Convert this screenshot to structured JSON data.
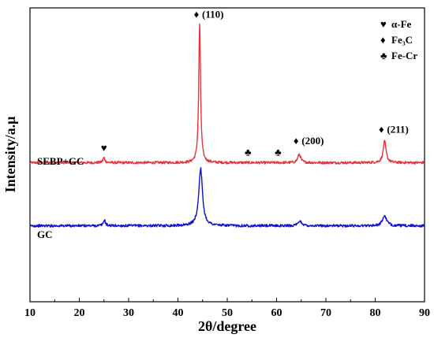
{
  "chart_data": {
    "type": "line",
    "xlabel": "2θ/degree",
    "ylabel": "Intensity/a.μ",
    "xlim": [
      10,
      90
    ],
    "xticks": [
      10,
      20,
      30,
      40,
      50,
      60,
      70,
      80,
      90
    ],
    "grid": false,
    "legend_placement": "top-right",
    "legend": [
      {
        "symbol": "♥",
        "label": "α-Fe"
      },
      {
        "symbol": "♦",
        "label": "Fe₃C"
      },
      {
        "symbol": "♣",
        "label": "Fe-Cr"
      }
    ],
    "series": [
      {
        "name": "SEBP+GC",
        "color": "#e8323c",
        "baseline": 0.77,
        "peaks": [
          {
            "x": 25.0,
            "h": 0.035,
            "w": 0.25
          },
          {
            "x": 44.4,
            "h": 0.97,
            "w": 0.22
          },
          {
            "x": 64.6,
            "h": 0.06,
            "w": 0.35
          },
          {
            "x": 81.9,
            "h": 0.15,
            "w": 0.35
          }
        ]
      },
      {
        "name": "GC",
        "color": "#1010d0",
        "baseline": 0.33,
        "peaks": [
          {
            "x": 25.1,
            "h": 0.04,
            "w": 0.25
          },
          {
            "x": 44.6,
            "h": 0.4,
            "w": 0.45
          },
          {
            "x": 64.8,
            "h": 0.03,
            "w": 0.45
          },
          {
            "x": 81.9,
            "h": 0.07,
            "w": 0.5
          }
        ]
      }
    ],
    "annotations": [
      {
        "symbol": "♥",
        "text": "",
        "x": 25.0,
        "y": 0.85,
        "series": "SEBP+GC"
      },
      {
        "symbol": "♦",
        "text": "(110)",
        "x": 44.4,
        "y": 1.78,
        "series": "SEBP+GC"
      },
      {
        "symbol": "♣",
        "text": "",
        "x": 54.2,
        "y": 0.82,
        "series": "SEBP+GC"
      },
      {
        "symbol": "♣",
        "text": "",
        "x": 60.3,
        "y": 0.82,
        "series": "SEBP+GC"
      },
      {
        "symbol": "♦",
        "text": "(200)",
        "x": 64.6,
        "y": 0.9,
        "series": "SEBP+GC"
      },
      {
        "symbol": "♦",
        "text": "(211)",
        "x": 81.9,
        "y": 0.98,
        "series": "SEBP+GC"
      }
    ]
  }
}
